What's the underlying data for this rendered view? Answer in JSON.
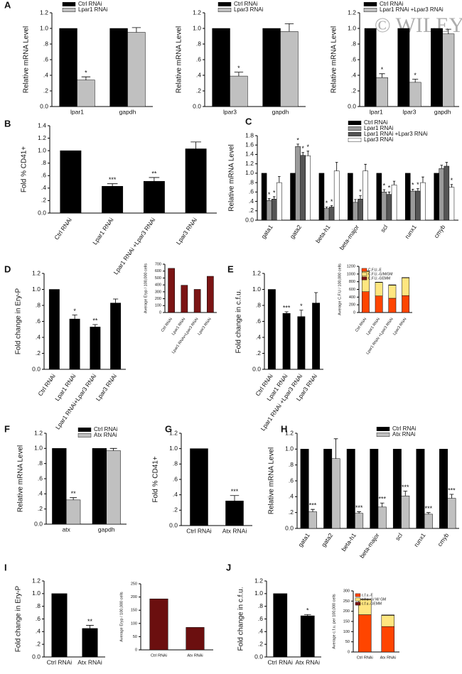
{
  "watermark": "© WILEY",
  "chart_data": [
    {
      "type": "bar",
      "label": "A",
      "ylabel": "Relative mRNA  Level",
      "ylim": [
        0,
        1.2
      ],
      "yticks": [
        {
          "value": 0,
          "label": "0.0"
        },
        {
          "value": 0.2,
          "label": ".2"
        },
        {
          "value": 0.4,
          "label": ".4"
        },
        {
          "value": 0.6,
          "label": ".6"
        },
        {
          "value": 0.8,
          "label": ".8"
        },
        {
          "value": 1,
          "label": "1.0"
        },
        {
          "value": 1.2,
          "label": "1.2"
        }
      ],
      "categories": [
        "lpar1",
        "gapdh"
      ],
      "series": [
        {
          "name": "Ctrl RNAi",
          "color": "#000000",
          "values": [
            1,
            1
          ]
        },
        {
          "name": "Lpar1 RNAi",
          "color": "#c0c0c0",
          "values": [
            0.34,
            0.95
          ],
          "errors": [
            0.04,
            0.06
          ],
          "stars": [
            "*",
            null
          ]
        }
      ]
    },
    {
      "type": "bar",
      "ylabel": "Relative mRNA  Level",
      "ylim": [
        0,
        1.2
      ],
      "yticks": [
        {
          "value": 0,
          "label": "0.0"
        },
        {
          "value": 0.2,
          "label": ".2"
        },
        {
          "value": 0.4,
          "label": ".4"
        },
        {
          "value": 0.6,
          "label": ".6"
        },
        {
          "value": 0.8,
          "label": ".8"
        },
        {
          "value": 1,
          "label": "1.0"
        },
        {
          "value": 1.2,
          "label": "1.2"
        }
      ],
      "categories": [
        "lpar3",
        "gapdh"
      ],
      "series": [
        {
          "name": "Ctrl RNAi",
          "color": "#000000",
          "values": [
            1,
            1
          ]
        },
        {
          "name": "Lpar3 RNAi",
          "color": "#c0c0c0",
          "values": [
            0.39,
            0.96
          ],
          "errors": [
            0.05,
            0.1
          ],
          "stars": [
            "*",
            null
          ]
        }
      ]
    },
    {
      "type": "bar",
      "ylabel": "Relative mRNA  Level",
      "ylim": [
        0,
        1.2
      ],
      "yticks": [
        {
          "value": 0,
          "label": "0.0"
        },
        {
          "value": 0.2,
          "label": ".2"
        },
        {
          "value": 0.4,
          "label": ".4"
        },
        {
          "value": 0.6,
          "label": ".6"
        },
        {
          "value": 0.8,
          "label": ".8"
        },
        {
          "value": 1,
          "label": "1.0"
        },
        {
          "value": 1.2,
          "label": "1.2"
        }
      ],
      "categories": [
        "lpar1",
        "lpar3",
        "gapdh"
      ],
      "series": [
        {
          "name": "Ctrl RNAi",
          "color": "#000000",
          "values": [
            1,
            1,
            1
          ]
        },
        {
          "name": "Lpar1 RNAi +Lpar3 RNAi",
          "color": "#c0c0c0",
          "values": [
            0.37,
            0.31,
            0.93
          ],
          "errors": [
            0.05,
            0.04,
            0.06
          ],
          "stars": [
            "*",
            "*",
            null
          ]
        }
      ]
    },
    {
      "type": "bar",
      "label": "B",
      "ylabel": "Fold % CD41+",
      "ylim": [
        0,
        1.4
      ],
      "yticks": [
        {
          "value": 0,
          "label": "0.0"
        },
        {
          "value": 0.2,
          "label": ".2"
        },
        {
          "value": 0.4,
          "label": ".4"
        },
        {
          "value": 0.6,
          "label": ".6"
        },
        {
          "value": 0.8,
          "label": ".8"
        },
        {
          "value": 1,
          "label": "1.0"
        },
        {
          "value": 1.2,
          "label": "1.2"
        },
        {
          "value": 1.4,
          "label": "1.4"
        }
      ],
      "categories": [
        "Ctrl RNAi",
        "Lpar1 RNAi",
        "Lpar1 RNAi +Lpar3 RNAi",
        "Lpar3 RNAi"
      ],
      "color": "#000000",
      "values": [
        1,
        0.43,
        0.51,
        1.03
      ],
      "errors": [
        null,
        0.04,
        0.06,
        0.11
      ],
      "stars": [
        null,
        "***",
        "**",
        null
      ]
    },
    {
      "type": "bar",
      "label": "C",
      "ylabel": "Relative mRNA Level",
      "ylim": [
        0,
        1.8
      ],
      "yticks": [
        {
          "value": 0,
          "label": "0.0"
        },
        {
          "value": 0.2,
          "label": ".2"
        },
        {
          "value": 0.4,
          "label": ".4"
        },
        {
          "value": 0.6,
          "label": ".6"
        },
        {
          "value": 0.8,
          "label": ".8"
        },
        {
          "value": 1,
          "label": "1.0"
        },
        {
          "value": 1.2,
          "label": "1.2"
        },
        {
          "value": 1.4,
          "label": "1.4"
        },
        {
          "value": 1.6,
          "label": "1.6"
        },
        {
          "value": 1.8,
          "label": "1.8"
        }
      ],
      "categories": [
        "gata1",
        "gata2",
        "beta-h1",
        "beta-major",
        "scl",
        "runx1",
        "cmyb"
      ],
      "series": [
        {
          "name": "Ctrl RNAi",
          "color": "#000000",
          "values": [
            1,
            1,
            1,
            1,
            1,
            1,
            1
          ]
        },
        {
          "name": "Lpar1 RNAi",
          "color": "#9a9a9a",
          "values": [
            0.42,
            1.57,
            0.25,
            0.38,
            0.6,
            0.62,
            1.1
          ],
          "errors": [
            0.04,
            0.05,
            0.03,
            0.06,
            0.05,
            0.04,
            0.07
          ],
          "stars": [
            "*",
            "*",
            "*",
            null,
            "*",
            "*",
            null
          ]
        },
        {
          "name": "Lpar1 RNAi +Lpar3 RNAi",
          "color": "#555555",
          "values": [
            0.45,
            1.38,
            0.28,
            0.45,
            0.55,
            0.62,
            1.15
          ],
          "errors": [
            0.05,
            0.06,
            0.03,
            0.07,
            0.05,
            0.05,
            0.08
          ],
          "stars": [
            "*",
            "*",
            "*",
            "*",
            "*",
            "*",
            null
          ]
        },
        {
          "name": "Lpar3 RNAi",
          "color": "#ffffff",
          "values": [
            0.8,
            1.37,
            1.05,
            1.05,
            0.75,
            0.8,
            0.7
          ],
          "errors": [
            0.13,
            0.1,
            0.18,
            0.14,
            0.08,
            0.12,
            0.06
          ],
          "stars": [
            null,
            "*",
            null,
            null,
            null,
            null,
            "*"
          ]
        }
      ]
    },
    {
      "type": "bar",
      "label": "D",
      "ylabel": "Fold change in Ery-P",
      "ylim": [
        0,
        1.2
      ],
      "yticks": [
        {
          "value": 0,
          "label": "0.0"
        },
        {
          "value": 0.2,
          "label": ".2"
        },
        {
          "value": 0.4,
          "label": ".4"
        },
        {
          "value": 0.6,
          "label": ".6"
        },
        {
          "value": 0.8,
          "label": ".8"
        },
        {
          "value": 1,
          "label": "1.0"
        },
        {
          "value": 1.2,
          "label": "1.2"
        }
      ],
      "categories": [
        "Ctrl RNAi",
        "Lpar1 RNAi",
        "Lpar1 RNAi+Lpar3 RNAi",
        "Lpar3 RNAi"
      ],
      "color": "#000000",
      "values": [
        1,
        0.63,
        0.53,
        0.83
      ],
      "errors": [
        null,
        0.05,
        0.03,
        0.05
      ],
      "stars": [
        null,
        "*",
        "**",
        null
      ]
    },
    {
      "type": "bar",
      "ylabel": "Average Eryp / 100,000 cells",
      "ylim": [
        0,
        700
      ],
      "yticks": [
        0,
        100,
        200,
        300,
        400,
        500,
        600,
        700
      ],
      "categories": [
        "Ctrl RNAi",
        "Lpar1 RNAi",
        "Lpar1 RNAi+Lpar3 RNAi",
        "Lpar3 RNAi"
      ],
      "color": "#7b1414",
      "values": [
        640,
        395,
        335,
        525
      ]
    },
    {
      "type": "bar",
      "label": "E",
      "ylabel": "Fold change in c.f.u.",
      "ylim": [
        0,
        1.2
      ],
      "yticks": [
        {
          "value": 0,
          "label": "0.0"
        },
        {
          "value": 0.2,
          "label": ".2"
        },
        {
          "value": 0.4,
          "label": ".4"
        },
        {
          "value": 0.6,
          "label": ".6"
        },
        {
          "value": 0.8,
          "label": ".8"
        },
        {
          "value": 1,
          "label": "1.0"
        },
        {
          "value": 1.2,
          "label": "1.2"
        }
      ],
      "categories": [
        "Ctrl RNAi",
        "Lpar1 RNAi",
        "Lpar1 RNAi +Lpar3 RNAi",
        "Lpar3 RNAi"
      ],
      "color": "#000000",
      "values": [
        1,
        0.7,
        0.66,
        0.83
      ],
      "errors": [
        null,
        0.02,
        0.08,
        0.13
      ],
      "stars": [
        null,
        "***",
        "*",
        null
      ]
    },
    {
      "type": "stacked_bar",
      "ylabel": "Average C.F.U / 100,000 cells",
      "ylim": [
        0,
        1200
      ],
      "yticks": [
        0,
        200,
        400,
        600,
        800,
        1000,
        1200
      ],
      "categories": [
        "Ctrl RNAi",
        "Lpar1 RNAi",
        "Lpar1 RNAi +Lpar3 RNAi",
        "Lpar3 RNAi"
      ],
      "series": [
        {
          "name": "C.F.U.-E",
          "color": "#ff4500",
          "values": [
            540,
            430,
            370,
            440
          ]
        },
        {
          "name": "C.F.U.-G/M/GM",
          "color": "#ffe680",
          "values": [
            530,
            350,
            340,
            460
          ]
        },
        {
          "name": "C.F.U.-GEMM",
          "color": "#7b1414",
          "values": [
            10,
            10,
            10,
            10
          ]
        }
      ]
    },
    {
      "type": "bar",
      "label": "F",
      "ylabel": "Relative mRNA Level",
      "ylim": [
        0,
        1.2
      ],
      "yticks": [
        {
          "value": 0,
          "label": "0.0"
        },
        {
          "value": 0.2,
          "label": ".2"
        },
        {
          "value": 0.4,
          "label": ".4"
        },
        {
          "value": 0.6,
          "label": ".6"
        },
        {
          "value": 0.8,
          "label": ".8"
        },
        {
          "value": 1,
          "label": "1.0"
        },
        {
          "value": 1.2,
          "label": "1.2"
        }
      ],
      "categories": [
        "atx",
        "gapdh"
      ],
      "series": [
        {
          "name": "Ctrl RNAi",
          "color": "#000000",
          "values": [
            1,
            1
          ]
        },
        {
          "name": "Atx RNAi",
          "color": "#c0c0c0",
          "values": [
            0.32,
            0.97
          ],
          "errors": [
            0.03,
            0.03
          ],
          "stars": [
            "**",
            null
          ]
        }
      ]
    },
    {
      "type": "bar",
      "label": "G",
      "ylabel": "Fold % CD41+",
      "ylim": [
        0,
        1.2
      ],
      "yticks": [
        {
          "value": 0,
          "label": "0.0"
        },
        {
          "value": 0.2,
          "label": ".2"
        },
        {
          "value": 0.4,
          "label": ".4"
        },
        {
          "value": 0.6,
          "label": ".6"
        },
        {
          "value": 0.8,
          "label": ".8"
        },
        {
          "value": 1,
          "label": "1.0"
        },
        {
          "value": 1.2,
          "label": "1.2"
        }
      ],
      "categories": [
        "Ctrl RNAi",
        "Atx RNAi"
      ],
      "color": "#000000",
      "values": [
        1,
        0.32
      ],
      "errors": [
        null,
        0.07
      ],
      "stars": [
        null,
        "***"
      ]
    },
    {
      "type": "bar",
      "label": "H",
      "ylabel": "Relative  mRNA  Level",
      "ylim": [
        0,
        1.2
      ],
      "yticks": [
        {
          "value": 0,
          "label": "0.0"
        },
        {
          "value": 0.2,
          "label": ".2"
        },
        {
          "value": 0.4,
          "label": ".4"
        },
        {
          "value": 0.6,
          "label": ".6"
        },
        {
          "value": 0.8,
          "label": ".8"
        },
        {
          "value": 1,
          "label": "1.0"
        },
        {
          "value": 1.2,
          "label": "1.2"
        }
      ],
      "categories": [
        "gata1",
        "gata2",
        "beta-h1",
        "beta-major",
        "scl",
        "runx1",
        "cmyb"
      ],
      "series": [
        {
          "name": "Ctrl RNAi",
          "color": "#000000",
          "values": [
            1,
            1,
            1,
            1,
            1,
            1,
            1
          ]
        },
        {
          "name": "Atx RNAi",
          "color": "#c0c0c0",
          "values": [
            0.21,
            0.88,
            0.19,
            0.27,
            0.41,
            0.18,
            0.38
          ],
          "errors": [
            0.03,
            0.25,
            0.02,
            0.05,
            0.06,
            0.02,
            0.05
          ],
          "stars": [
            "***",
            null,
            "***",
            "***",
            "***",
            "***",
            "***"
          ]
        }
      ]
    },
    {
      "type": "bar",
      "label": "I",
      "ylabel": "Fold change in Ery-P",
      "ylim": [
        0,
        1.2
      ],
      "yticks": [
        {
          "value": 0,
          "label": "0.0"
        },
        {
          "value": 0.2,
          "label": ".2"
        },
        {
          "value": 0.4,
          "label": ".4"
        },
        {
          "value": 0.6,
          "label": ".6"
        },
        {
          "value": 0.8,
          "label": ".8"
        },
        {
          "value": 1,
          "label": "1.0"
        },
        {
          "value": 1.2,
          "label": "1.2"
        }
      ],
      "categories": [
        "Ctrl RNAi",
        "Atx RNAi"
      ],
      "color": "#000000",
      "values": [
        1,
        0.45
      ],
      "errors": [
        null,
        0.05
      ],
      "stars": [
        null,
        "**"
      ]
    },
    {
      "type": "bar",
      "ylabel": "Average Eryp / 100,000 cells",
      "ylim": [
        0,
        250
      ],
      "yticks": [
        0,
        50,
        100,
        150,
        200,
        250
      ],
      "categories": [
        "Ctrl RNAi",
        "Atx RNAi"
      ],
      "color": "#6b0f0f",
      "values": [
        193,
        85
      ]
    },
    {
      "type": "bar",
      "label": "J",
      "ylabel": "Fold change in c.f.u.",
      "ylim": [
        0,
        1.2
      ],
      "yticks": [
        {
          "value": 0,
          "label": "0.0"
        },
        {
          "value": 0.2,
          "label": ".2"
        },
        {
          "value": 0.4,
          "label": ".4"
        },
        {
          "value": 0.6,
          "label": ".6"
        },
        {
          "value": 0.8,
          "label": ".8"
        },
        {
          "value": 1,
          "label": "1.0"
        },
        {
          "value": 1.2,
          "label": "1.2"
        }
      ],
      "categories": [
        "Ctrl RNAi",
        "Atx RNAi"
      ],
      "color": "#000000",
      "values": [
        1,
        0.65
      ],
      "errors": [
        null,
        0.02
      ],
      "stars": [
        null,
        "*"
      ]
    },
    {
      "type": "stacked_bar",
      "ylabel": "Average c.f.u.  per 100,000 cells",
      "ylim": [
        0,
        300
      ],
      "yticks": [
        0,
        50,
        100,
        150,
        200,
        250,
        300
      ],
      "categories": [
        "Ctrl RNAi",
        "Atx RNAi"
      ],
      "series": [
        {
          "name": "c.f.u.-E",
          "color": "#ff4500",
          "values": [
            183,
            125
          ]
        },
        {
          "name": "c.f.u.-G/ M/ GM",
          "color": "#ffe680",
          "values": [
            75,
            55
          ]
        },
        {
          "name": "c.f.u.-GEMM",
          "color": "#7b1414",
          "values": [
            2,
            2
          ]
        }
      ]
    }
  ]
}
